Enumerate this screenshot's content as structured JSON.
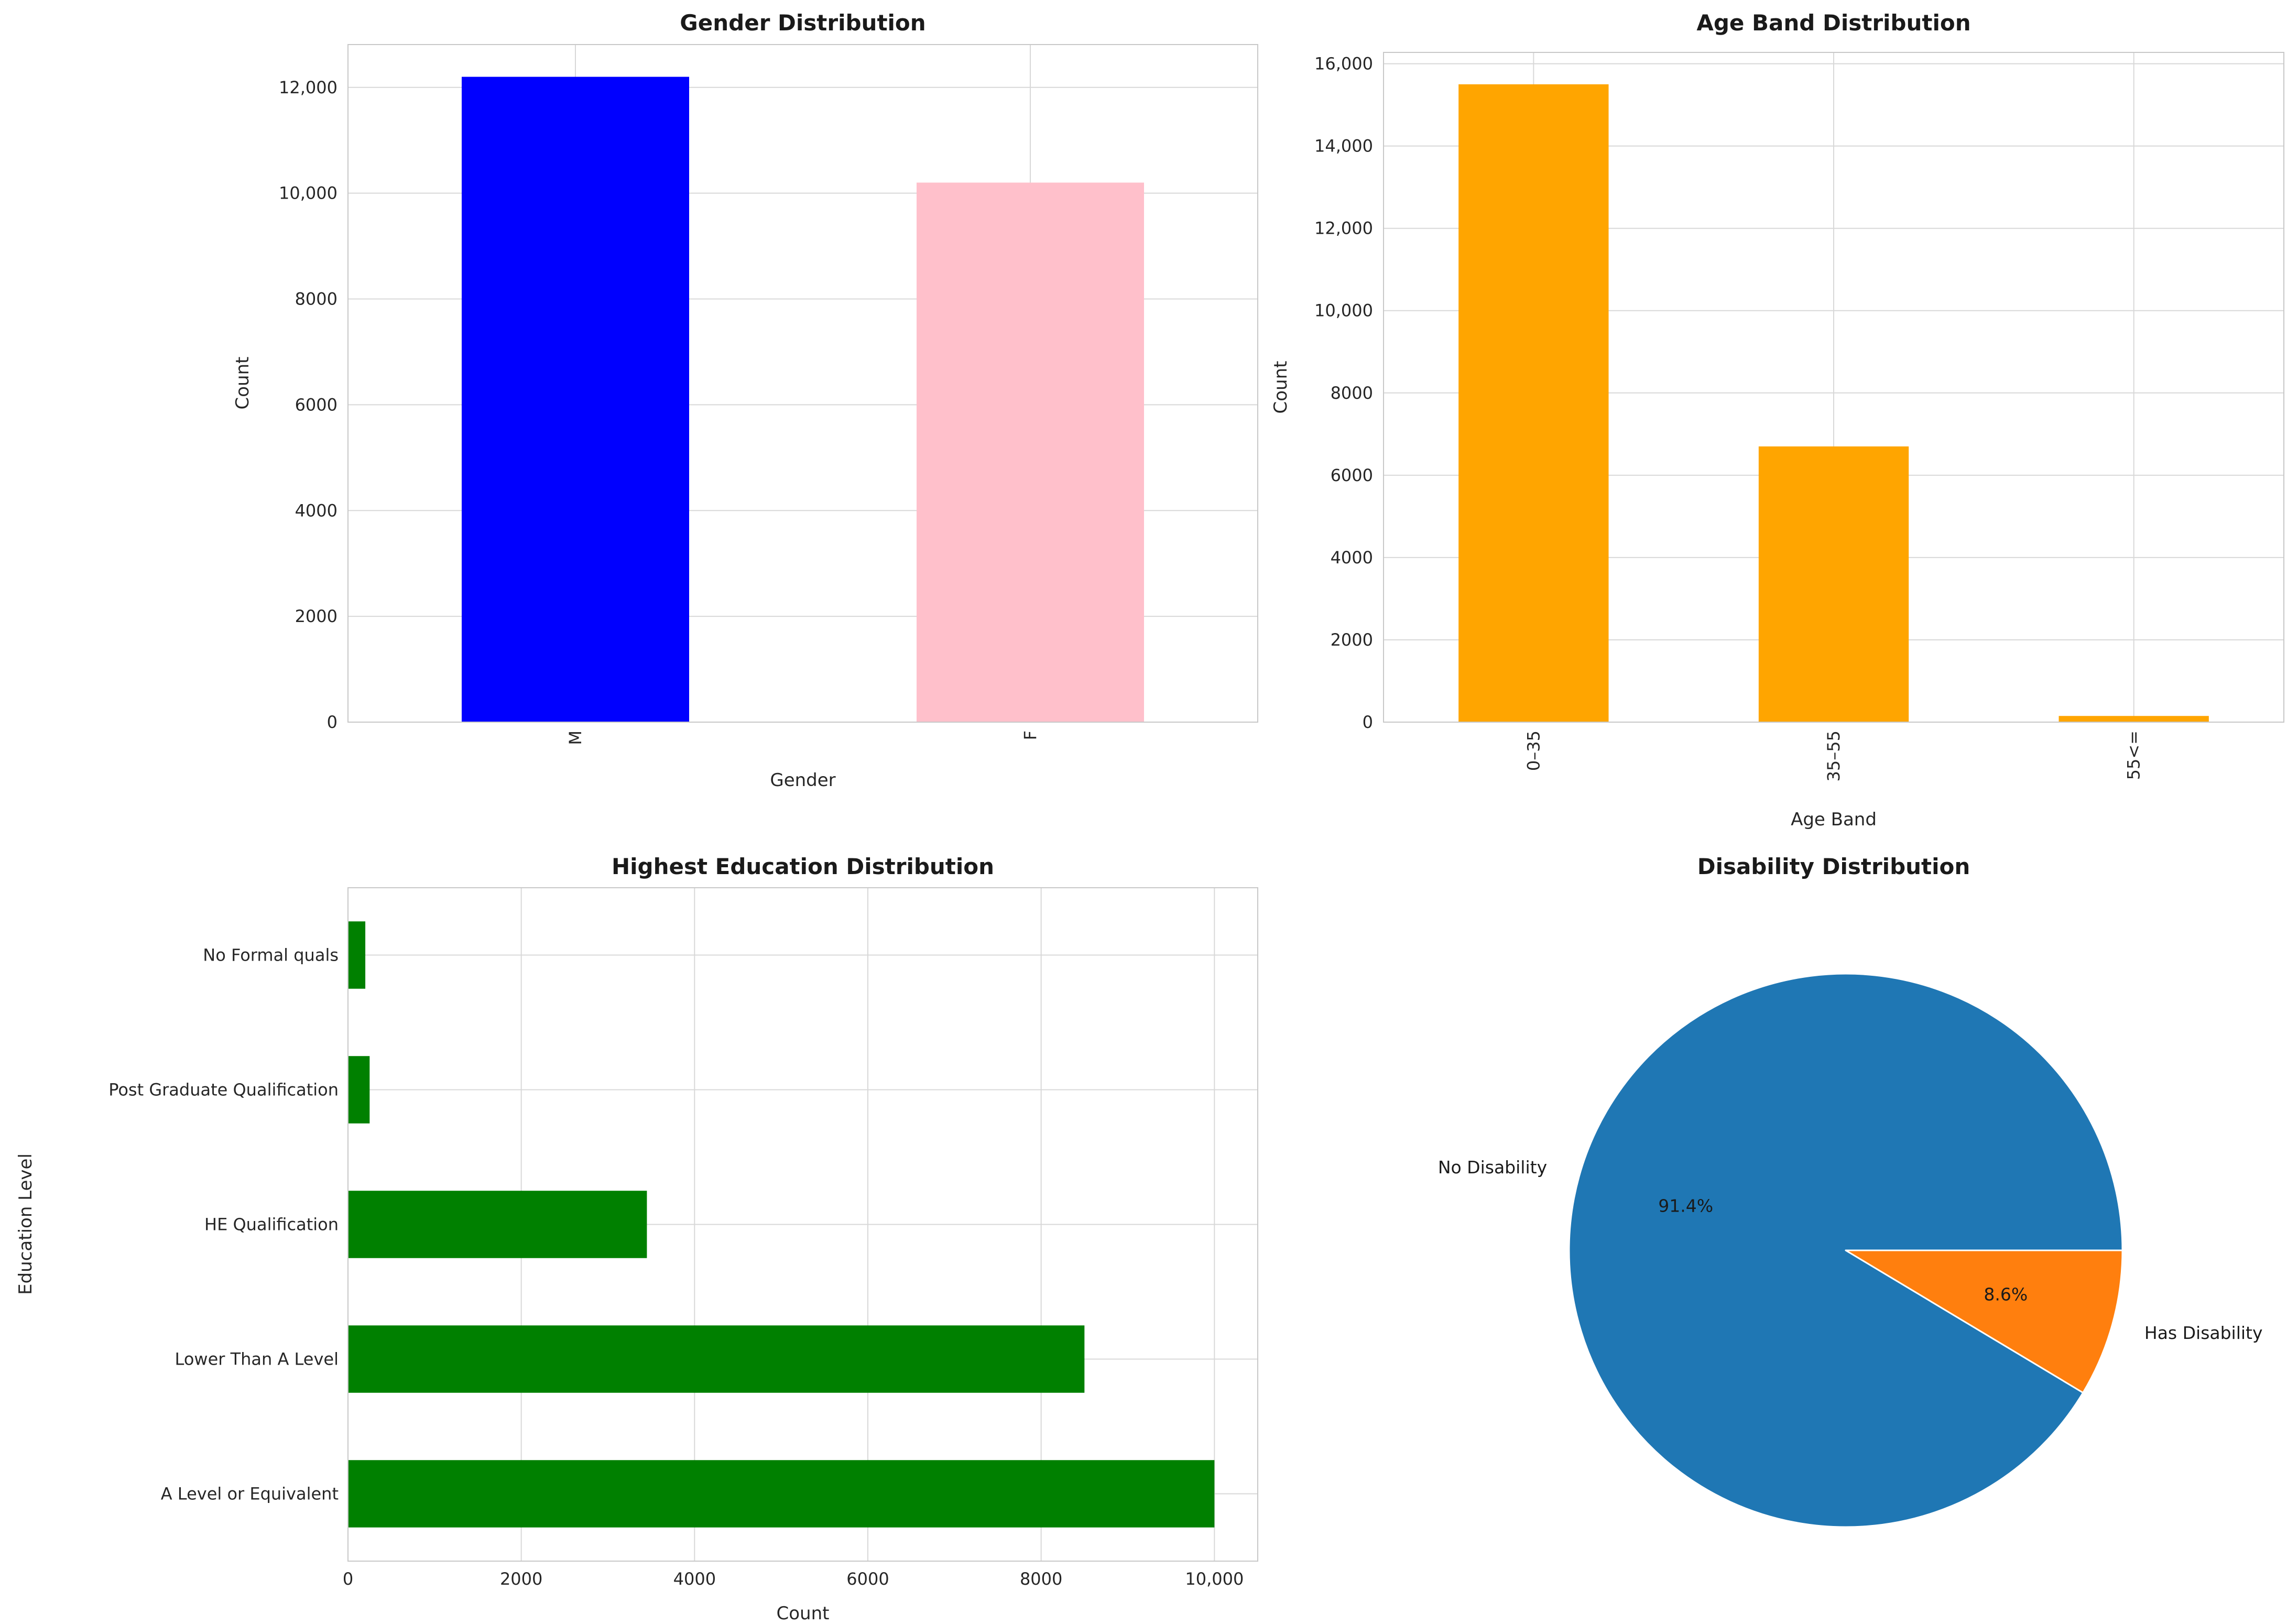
{
  "figure": {
    "background": "#ffffff",
    "grid_color": "#d8d8d8",
    "spine_color": "#c8c8c8"
  },
  "chart_data": [
    {
      "id": "gender",
      "type": "bar",
      "title": "Gender Distribution",
      "xlabel": "Gender",
      "ylabel": "Count",
      "categories": [
        "M",
        "F"
      ],
      "values": [
        12200,
        10200
      ],
      "bar_colors": [
        "#0000ff",
        "#ffc0cb"
      ],
      "bar_width_fraction": 0.5,
      "ylim": [
        0,
        12810
      ],
      "yticks": [
        0,
        2000,
        4000,
        6000,
        8000,
        10000,
        12000
      ],
      "ytick_labels": [
        "0",
        "2000",
        "4000",
        "6000",
        "8000",
        "10,000",
        "12,000"
      ],
      "xtick_rotation": 90,
      "grid": true,
      "legend": "none"
    },
    {
      "id": "age-band",
      "type": "bar",
      "title": "Age Band Distribution",
      "xlabel": "Age Band",
      "ylabel": "Count",
      "categories": [
        "0–35",
        "35–55",
        "55<="
      ],
      "values": [
        15500,
        6700,
        150
      ],
      "bar_colors": [
        "#ffa500",
        "#ffa500",
        "#ffa500"
      ],
      "bar_width_fraction": 0.5,
      "ylim": [
        0,
        16275
      ],
      "yticks": [
        0,
        2000,
        4000,
        6000,
        8000,
        10000,
        12000,
        14000,
        16000
      ],
      "ytick_labels": [
        "0",
        "2000",
        "4000",
        "6000",
        "8000",
        "10,000",
        "12,000",
        "14,000",
        "16,000"
      ],
      "xtick_rotation": 90,
      "grid": true,
      "legend": "none"
    },
    {
      "id": "highest-education",
      "type": "barh",
      "title": "Highest Education Distribution",
      "xlabel": "Count",
      "ylabel": "Education Level",
      "categories": [
        "A Level or Equivalent",
        "Lower Than A Level",
        "HE Qualification",
        "Post Graduate Qualification",
        "No Formal quals"
      ],
      "values": [
        10000,
        8500,
        3450,
        250,
        200
      ],
      "bar_colors": [
        "#008000",
        "#008000",
        "#008000",
        "#008000",
        "#008000"
      ],
      "bar_width_fraction": 0.5,
      "xlim": [
        0,
        10500
      ],
      "xticks": [
        0,
        2000,
        4000,
        6000,
        8000,
        10000
      ],
      "xtick_labels": [
        "0",
        "2000",
        "4000",
        "6000",
        "8000",
        "10,000"
      ],
      "grid": true,
      "legend": "none"
    },
    {
      "id": "disability",
      "type": "pie",
      "title": "Disability Distribution",
      "labels": [
        "No Disability",
        "Has Disability"
      ],
      "values": [
        91.4,
        8.6
      ],
      "pct_labels": [
        "91.4%",
        "8.6%"
      ],
      "colors": [
        "#1f77b4",
        "#ff7f0e"
      ],
      "start_angle": 0,
      "counterclock": true,
      "label_distance": 1.12,
      "pct_distance": 0.6
    }
  ]
}
